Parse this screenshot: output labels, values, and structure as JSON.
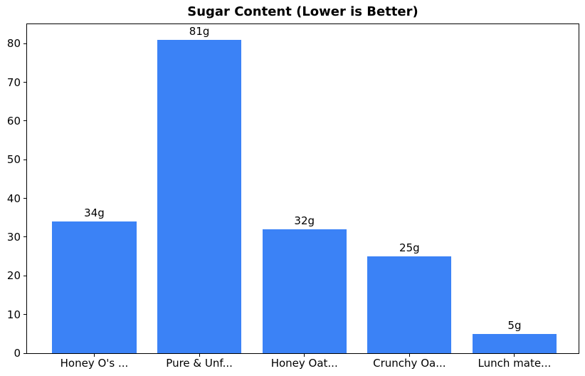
{
  "chart_data": {
    "type": "bar",
    "title": "Sugar Content (Lower is Better)",
    "categories": [
      "Honey O's ...",
      "Pure & Unf...",
      "Honey Oat...",
      "Crunchy Oa...",
      "Lunch mate..."
    ],
    "values": [
      34,
      81,
      32,
      25,
      5
    ],
    "bar_labels": [
      "34g",
      "81g",
      "32g",
      "25g",
      "5g"
    ],
    "xlabel": "",
    "ylabel": "",
    "ylim": [
      0,
      85
    ],
    "yticks": [
      0,
      10,
      20,
      30,
      40,
      50,
      60,
      70,
      80
    ],
    "grid": false,
    "legend": "none",
    "bar_color": "#3b82f6",
    "background_color": "#ffffff",
    "text_color": "#000000"
  }
}
